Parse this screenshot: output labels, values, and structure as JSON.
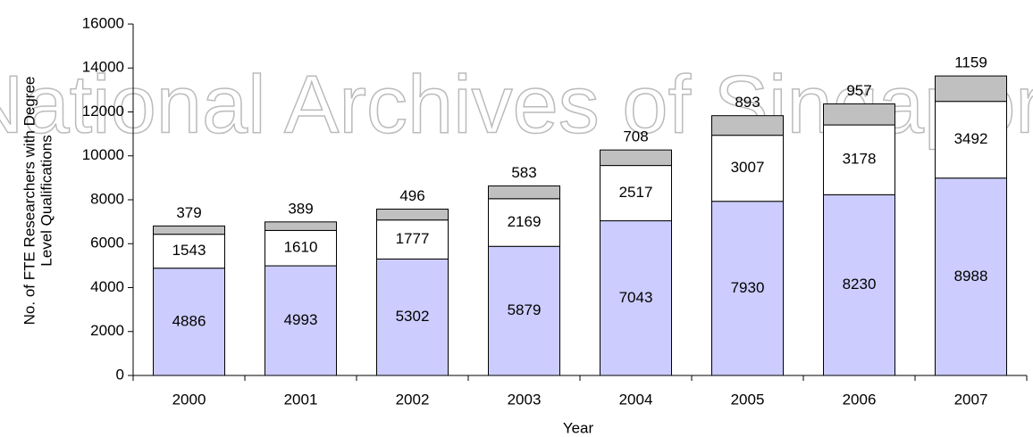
{
  "chart_data": {
    "type": "stacked_bar",
    "y_label": [
      "No. of FTE Researchers with Degree",
      "Level Qualifications"
    ],
    "x_label": "Year",
    "watermark": "National Archives of Singapore",
    "categories": [
      "2000",
      "2001",
      "2002",
      "2003",
      "2004",
      "2005",
      "2006",
      "2007"
    ],
    "series": [
      {
        "color": "#ccccff",
        "values": [
          4886,
          4993,
          5302,
          5879,
          7043,
          7930,
          8230,
          8988
        ]
      },
      {
        "color": "#ffffff",
        "values": [
          1543,
          1610,
          1777,
          2169,
          2517,
          3007,
          3178,
          3492
        ]
      },
      {
        "color": "#c0c0c0",
        "values": [
          379,
          389,
          496,
          583,
          708,
          893,
          957,
          1159
        ]
      }
    ],
    "ylim": [
      0,
      16000
    ],
    "yticks": [
      0,
      2000,
      4000,
      6000,
      8000,
      10000,
      12000,
      14000,
      16000
    ]
  }
}
